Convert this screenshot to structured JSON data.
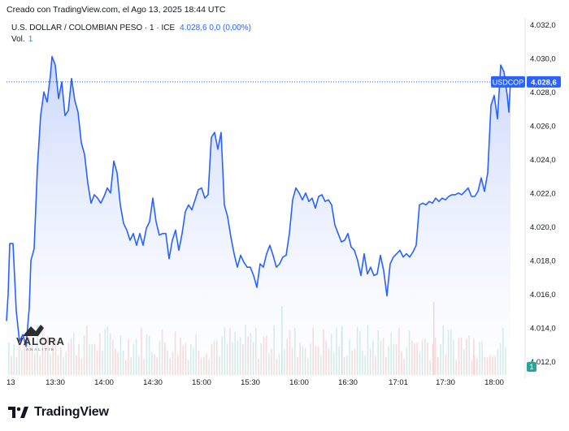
{
  "header": {
    "created_text": "Creado con TradingView.com, el Ago 13, 2025 18:44 UTC"
  },
  "legend": {
    "symbol_text": "U.S. DOLLAR / COLOMBIAN PESO · 1 · ICE",
    "value_text": "4.028,6  0,0 (0,00%)",
    "vol_label": "Vol.",
    "vol_value": "1"
  },
  "price_tag": {
    "symbol": "USDCOP",
    "value": "4.028,6",
    "value_num": 4028.6
  },
  "volume_tag": {
    "value": "1"
  },
  "watermark": {
    "brand": "VALORA",
    "sub": "ANALITIK"
  },
  "footer": {
    "logo_text": "TradingView"
  },
  "colors": {
    "line": "#2962ff",
    "area_top": "#c5d3fb",
    "area_bottom": "#ffffff",
    "volume_up": "#9fd4cc",
    "volume_down": "#f2a9a9",
    "price_tag_bg": "#2962ff"
  },
  "chart_data": {
    "type": "area",
    "title": "U.S. DOLLAR / COLOMBIAN PESO · 1 · ICE",
    "ylim": [
      4011.2,
      4032.4
    ],
    "y_ticks": [
      4012.0,
      4014.0,
      4016.0,
      4018.0,
      4020.0,
      4022.0,
      4024.0,
      4026.0,
      4028.0,
      4030.0,
      4032.0
    ],
    "y_tick_labels": [
      "4.012,0",
      "4.014,0",
      "4.016,0",
      "4.018,0",
      "4.020,0",
      "4.022,0",
      "4.024,0",
      "4.026,0",
      "4.028,0",
      "4.030,0",
      "4.032,0"
    ],
    "x_ticks": [
      "13:00",
      "13:30",
      "14:00",
      "14:30",
      "15:00",
      "15:30",
      "16:00",
      "16:30",
      "17:01",
      "17:30",
      "18:00"
    ],
    "x_tick_labels": [
      "13",
      "13:30",
      "14:00",
      "14:30",
      "15:00",
      "15:30",
      "16:00",
      "16:30",
      "17:01",
      "17:30",
      "18:00"
    ],
    "xlim": [
      "13:00",
      "18:10"
    ],
    "grid": false,
    "series": [
      {
        "values": [
          [
            "13:00",
            4014.4
          ],
          [
            "13:01",
            4016.0
          ],
          [
            "13:02",
            4019.0
          ],
          [
            "13:04",
            4019.0
          ],
          [
            "13:06",
            4015.0
          ],
          [
            "13:08",
            4013.2
          ],
          [
            "13:10",
            4013.6
          ],
          [
            "13:12",
            4012.9
          ],
          [
            "13:14",
            4015.2
          ],
          [
            "13:15",
            4018.0
          ],
          [
            "13:17",
            4018.7
          ],
          [
            "13:19",
            4023.5
          ],
          [
            "13:21",
            4026.6
          ],
          [
            "13:23",
            4028.0
          ],
          [
            "13:25",
            4027.4
          ],
          [
            "13:27",
            4029.0
          ],
          [
            "13:28",
            4030.1
          ],
          [
            "13:30",
            4029.6
          ],
          [
            "13:32",
            4027.6
          ],
          [
            "13:34",
            4028.6
          ],
          [
            "13:36",
            4026.6
          ],
          [
            "13:38",
            4026.9
          ],
          [
            "13:40",
            4028.8
          ],
          [
            "13:42",
            4027.5
          ],
          [
            "13:44",
            4026.8
          ],
          [
            "13:46",
            4025.0
          ],
          [
            "13:48",
            4024.3
          ],
          [
            "13:50",
            4022.6
          ],
          [
            "13:52",
            4021.4
          ],
          [
            "13:54",
            4021.9
          ],
          [
            "13:56",
            4021.7
          ],
          [
            "13:58",
            4021.4
          ],
          [
            "14:00",
            4021.8
          ],
          [
            "14:02",
            4022.3
          ],
          [
            "14:04",
            4022.0
          ],
          [
            "14:06",
            4023.9
          ],
          [
            "14:08",
            4023.2
          ],
          [
            "14:10",
            4021.3
          ],
          [
            "14:12",
            4020.2
          ],
          [
            "14:14",
            4019.8
          ],
          [
            "14:16",
            4019.2
          ],
          [
            "14:18",
            4019.6
          ],
          [
            "14:20",
            4018.9
          ],
          [
            "14:22",
            4019.6
          ],
          [
            "14:24",
            4018.9
          ],
          [
            "14:26",
            4019.9
          ],
          [
            "14:28",
            4020.3
          ],
          [
            "14:30",
            4021.7
          ],
          [
            "14:32",
            4020.3
          ],
          [
            "14:34",
            4019.5
          ],
          [
            "14:36",
            4019.6
          ],
          [
            "14:38",
            4019.6
          ],
          [
            "14:40",
            4018.1
          ],
          [
            "14:42",
            4019.2
          ],
          [
            "14:44",
            4019.8
          ],
          [
            "14:46",
            4018.6
          ],
          [
            "14:48",
            4019.6
          ],
          [
            "14:50",
            4020.9
          ],
          [
            "14:52",
            4021.3
          ],
          [
            "14:54",
            4021.0
          ],
          [
            "14:56",
            4021.6
          ],
          [
            "14:58",
            4022.2
          ],
          [
            "15:00",
            4022.3
          ],
          [
            "15:02",
            4021.7
          ],
          [
            "15:04",
            4021.9
          ],
          [
            "15:06",
            4025.3
          ],
          [
            "15:08",
            4025.6
          ],
          [
            "15:10",
            4024.6
          ],
          [
            "15:12",
            4025.6
          ],
          [
            "15:14",
            4021.3
          ],
          [
            "15:16",
            4020.6
          ],
          [
            "15:18",
            4019.4
          ],
          [
            "15:20",
            4018.4
          ],
          [
            "15:22",
            4017.6
          ],
          [
            "15:24",
            4018.3
          ],
          [
            "15:26",
            4017.9
          ],
          [
            "15:28",
            4017.6
          ],
          [
            "15:30",
            4017.6
          ],
          [
            "15:32",
            4017.1
          ],
          [
            "15:34",
            4016.4
          ],
          [
            "15:36",
            4017.8
          ],
          [
            "15:38",
            4017.6
          ],
          [
            "15:40",
            4018.4
          ],
          [
            "15:42",
            4018.9
          ],
          [
            "15:44",
            4018.3
          ],
          [
            "15:46",
            4017.6
          ],
          [
            "15:48",
            4017.8
          ],
          [
            "15:50",
            4018.2
          ],
          [
            "15:52",
            4018.3
          ],
          [
            "15:54",
            4019.6
          ],
          [
            "15:56",
            4021.6
          ],
          [
            "15:58",
            4022.3
          ],
          [
            "16:00",
            4022.0
          ],
          [
            "16:02",
            4021.6
          ],
          [
            "16:04",
            4022.0
          ],
          [
            "16:06",
            4021.5
          ],
          [
            "16:08",
            4021.7
          ],
          [
            "16:10",
            4021.1
          ],
          [
            "16:12",
            4021.8
          ],
          [
            "16:14",
            4021.9
          ],
          [
            "16:16",
            4021.5
          ],
          [
            "16:18",
            4021.6
          ],
          [
            "16:20",
            4021.3
          ],
          [
            "16:22",
            4020.1
          ],
          [
            "16:24",
            4019.6
          ],
          [
            "16:26",
            4019.1
          ],
          [
            "16:28",
            4019.2
          ],
          [
            "16:30",
            4019.6
          ],
          [
            "16:32",
            4018.8
          ],
          [
            "16:34",
            4018.6
          ],
          [
            "16:36",
            4018.0
          ],
          [
            "16:38",
            4017.1
          ],
          [
            "16:40",
            4018.4
          ],
          [
            "16:42",
            4017.2
          ],
          [
            "16:44",
            4017.6
          ],
          [
            "16:46",
            4017.1
          ],
          [
            "16:48",
            4017.2
          ],
          [
            "16:50",
            4018.3
          ],
          [
            "16:52",
            4017.4
          ],
          [
            "16:54",
            4015.9
          ],
          [
            "16:56",
            4017.8
          ],
          [
            "16:58",
            4018.2
          ],
          [
            "17:00",
            4018.4
          ],
          [
            "17:02",
            4018.6
          ],
          [
            "17:04",
            4018.2
          ],
          [
            "17:06",
            4018.4
          ],
          [
            "17:08",
            4018.2
          ],
          [
            "17:10",
            4018.5
          ],
          [
            "17:12",
            4018.9
          ],
          [
            "17:14",
            4021.3
          ],
          [
            "17:16",
            4021.4
          ],
          [
            "17:18",
            4021.3
          ],
          [
            "17:20",
            4021.5
          ],
          [
            "17:22",
            4021.4
          ],
          [
            "17:24",
            4021.7
          ],
          [
            "17:26",
            4021.5
          ],
          [
            "17:28",
            4021.7
          ],
          [
            "17:30",
            4021.6
          ],
          [
            "17:32",
            4021.8
          ],
          [
            "17:34",
            4021.9
          ],
          [
            "17:36",
            4021.9
          ],
          [
            "17:38",
            4022.0
          ],
          [
            "17:40",
            4021.9
          ],
          [
            "17:42",
            4022.1
          ],
          [
            "17:44",
            4022.3
          ],
          [
            "17:46",
            4021.8
          ],
          [
            "17:48",
            4021.8
          ],
          [
            "17:50",
            4022.1
          ],
          [
            "17:52",
            4022.9
          ],
          [
            "17:54",
            4022.1
          ],
          [
            "17:56",
            4023.2
          ],
          [
            "17:58",
            4027.2
          ],
          [
            "18:00",
            4027.8
          ],
          [
            "18:02",
            4026.4
          ],
          [
            "18:04",
            4029.6
          ],
          [
            "18:06",
            4029.2
          ],
          [
            "18:08",
            4027.8
          ],
          [
            "18:09",
            4026.8
          ],
          [
            "18:10",
            4028.6
          ]
        ]
      }
    ],
    "volume_ylim": [
      0,
      5
    ]
  }
}
